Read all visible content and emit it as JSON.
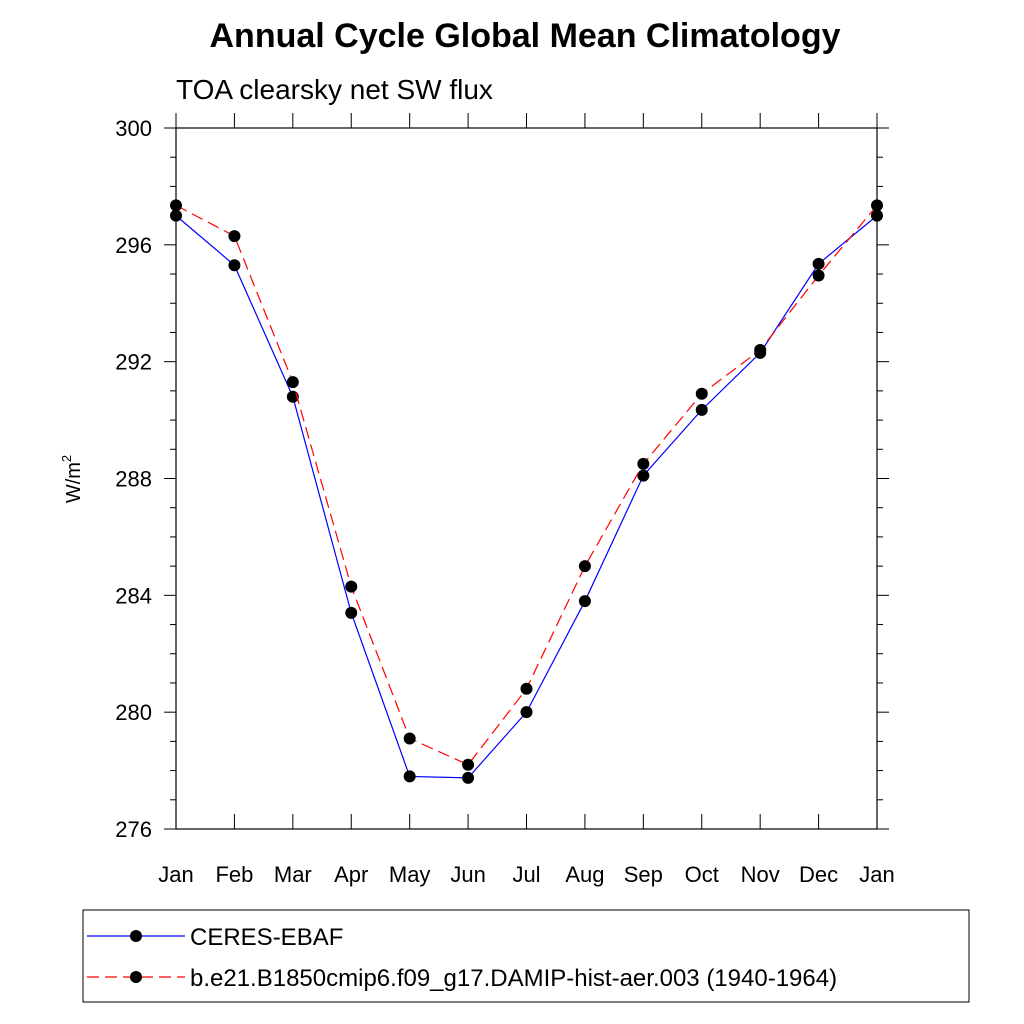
{
  "chart_data": {
    "type": "line",
    "title": "Annual Cycle Global Mean Climatology",
    "subtitle": "TOA clearsky net SW flux",
    "xlabel": "",
    "ylabel": "W/m",
    "ylabel_superscript": "2",
    "categories": [
      "Jan",
      "Feb",
      "Mar",
      "Apr",
      "May",
      "Jun",
      "Jul",
      "Aug",
      "Sep",
      "Oct",
      "Nov",
      "Dec",
      "Jan"
    ],
    "ylim": [
      276,
      300
    ],
    "yticks": [
      276,
      280,
      284,
      288,
      292,
      296,
      300
    ],
    "grid": false,
    "legend_placement": "bottom",
    "series": [
      {
        "name": "CERES-EBAF",
        "color": "#0000ff",
        "dash": "solid",
        "values": [
          297.0,
          295.3,
          290.8,
          283.4,
          277.8,
          277.75,
          280.0,
          283.8,
          288.1,
          290.35,
          292.3,
          295.35,
          297.0
        ]
      },
      {
        "name": "b.e21.B1850cmip6.f09_g17.DAMIP-hist-aer.003 (1940-1964)",
        "color": "#ff0000",
        "dash": "dashed",
        "values": [
          297.35,
          296.3,
          291.3,
          284.3,
          279.1,
          278.2,
          280.8,
          285.0,
          288.5,
          290.9,
          292.4,
          294.95,
          297.35
        ]
      }
    ]
  }
}
